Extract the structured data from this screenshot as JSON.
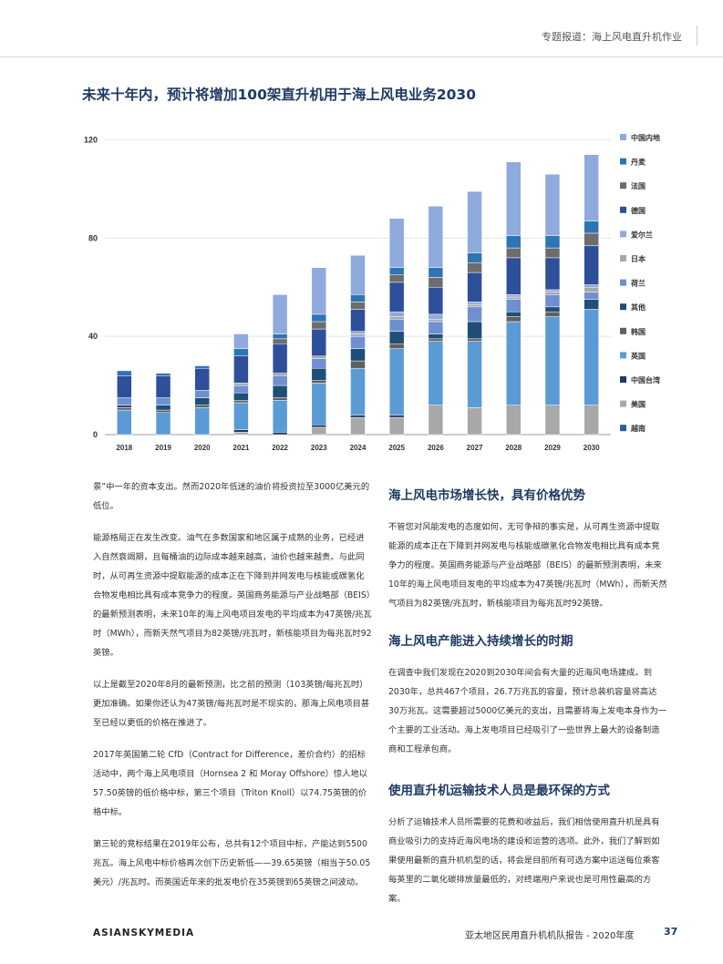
{
  "header": {
    "topic": "专题报道：海上风电直升机作业"
  },
  "chart_title": "未来十年内，预计将增加100架直升机用于海上风电业务2030",
  "chart_data": {
    "type": "bar",
    "stacked": true,
    "categories": [
      "2018",
      "2019",
      "2020",
      "2021",
      "2022",
      "2023",
      "2024",
      "2025",
      "2026",
      "2027",
      "2028",
      "2029",
      "2030"
    ],
    "ylim": [
      0,
      125
    ],
    "yticks": [
      "0",
      "40",
      "80",
      "120"
    ],
    "legend_position": "right",
    "series": [
      {
        "name": "越南",
        "color": "#2c5aa0",
        "values": [
          0,
          0,
          0,
          0,
          0,
          0,
          0,
          0,
          0,
          0,
          0,
          0,
          0
        ]
      },
      {
        "name": "美国",
        "color": "#a8a8a8",
        "values": [
          0,
          0,
          0,
          1,
          0,
          3,
          7,
          7,
          12,
          11,
          12,
          12,
          12
        ]
      },
      {
        "name": "中国台湾",
        "color": "#1f3b63",
        "values": [
          0,
          0,
          0,
          1,
          1,
          1,
          1,
          1,
          0,
          0,
          0,
          0,
          0
        ]
      },
      {
        "name": "英国",
        "color": "#5b9bd5",
        "values": [
          10,
          9,
          11,
          11,
          13,
          17,
          19,
          27,
          26,
          27,
          34,
          36,
          39
        ]
      },
      {
        "name": "韩国",
        "color": "#606060",
        "values": [
          1,
          1,
          1,
          1,
          1,
          1,
          3,
          2,
          1,
          1,
          2,
          2,
          0
        ]
      },
      {
        "name": "其他",
        "color": "#1f4e79",
        "values": [
          1,
          2,
          3,
          3,
          5,
          5,
          5,
          5,
          2,
          7,
          2,
          2,
          4
        ]
      },
      {
        "name": "荷兰",
        "color": "#6f8fd0",
        "values": [
          3,
          3,
          3,
          3,
          4,
          4,
          5,
          5,
          5,
          6,
          5,
          5,
          3
        ]
      },
      {
        "name": "日本",
        "color": "#a8a8a8",
        "values": [
          0,
          0,
          0,
          1,
          1,
          1,
          1,
          1,
          1,
          1,
          1,
          1,
          2
        ]
      },
      {
        "name": "爱尔兰",
        "color": "#8faadc",
        "values": [
          0,
          0,
          0,
          0,
          0,
          0,
          1,
          2,
          2,
          1,
          1,
          1,
          1
        ]
      },
      {
        "name": "德国",
        "color": "#2e4f9a",
        "values": [
          9,
          9,
          9,
          11,
          12,
          11,
          9,
          12,
          11,
          12,
          15,
          13,
          16
        ]
      },
      {
        "name": "法国",
        "color": "#6d6d6d",
        "values": [
          0,
          0,
          0,
          0,
          2,
          3,
          3,
          3,
          4,
          4,
          4,
          4,
          5
        ]
      },
      {
        "name": "丹麦",
        "color": "#2e75b6",
        "values": [
          2,
          1,
          1,
          3,
          2,
          3,
          3,
          3,
          4,
          4,
          5,
          5,
          5
        ]
      },
      {
        "name": "中国内地",
        "color": "#8faadc",
        "values": [
          0,
          0,
          0,
          6,
          16,
          19,
          16,
          20,
          25,
          25,
          30,
          25,
          27
        ]
      }
    ]
  },
  "left_col": {
    "paragraphs": [
      "景”中一年的资本支出。然而2020年低迷的油价将投资拉至3000亿美元的低位。",
      "能源格局正在发生改变。油气在多数国家和地区属于成熟的业务，已经进入自然衰竭期，且每桶油的边际成本越来越高，油价也越来越贵。与此同时，从可再生资源中提取能源的成本正在下降到并网发电与核能或碳氢化合物发电相比具有成本竞争力的程度。英国商务能源与产业战略部（BEIS）的最新预测表明，未来10年的海上风电项目发电的平均成本为47英镑/兆瓦时（MWh），而新天然气项目为82英镑/兆瓦时，新核能项目为每兆瓦时92英镑。",
      "以上是截至2020年8月的最新预测，比之前的预测（103英镑/每兆瓦时）更加准确。如果你还认为47英镑/每兆瓦时是不现实的，那海上风电项目甚至已经以更低的价格在推进了。",
      "2017年英国第二轮 CfD（Contract for Difference，差价合约）的招标活动中，两个海上风电项目（Hornsea 2 和 Moray Offshore）惊人地以57.50英镑的低价格中标，第三个项目（Triton Knoll）以74.75英镑的价格中标。",
      "第三轮的竞标结果在2019年公布，总共有12个项目中标，产能达到5500兆瓦。海上风电中标价格再次创下历史新低——39.65英镑（相当于50.05美元）/兆瓦时。而英国近年来的批发电价在35英镑到65英镑之间波动。"
    ]
  },
  "right_col": {
    "section1_title": "海上风电市场增长快，具有价格优势",
    "section1_text": "不管您对风能发电的态度如何，无可争辩的事实是，从可再生资源中提取能源的成本正在下降到并网发电与核能或碳氢化合物发电相比具有成本竞争力的程度。英国商务能源与产业战略部（BEIS）的最新预测表明，未来10年的海上风电项目发电的平均成本为47英镑/兆瓦时（MWh），而新天然气项目为82英镑/兆瓦时，新核能项目为每兆瓦时92英镑。",
    "section2_title": "海上风电产能进入持续增长的时期",
    "section2_text": "在调查中我们发现在2020到2030年间会有大量的近海风电场建成。到2030年，总共467个项目，26.7万兆瓦的容量，预计总装机容量将高达30万兆瓦。这需要超过5000亿美元的支出，且需要将海上发电本身作为一个主要的工业活动。海上发电项目已经吸引了一些世界上最大的设备制造商和工程承包商。",
    "section3_title": "使用直升机运输技术人员是最环保的方式",
    "section3_text": "分析了运输技术人员所需要的花费和收益后，我们相信使用直升机是具有商业吸引力的支持近海风电场的建设和运营的选项。此外，我们了解到如果使用最新的直升机机型的话，将会是目前所有可选方案中运送每位乘客每英里的二氧化碳排放量最低的，对终端用户来说也是可用性最高的方案。"
  },
  "footer": {
    "logo": "ASIANSKYMEDIA",
    "report": "亚太地区民用直升机机队报告 - 2020年度",
    "page": "37"
  }
}
